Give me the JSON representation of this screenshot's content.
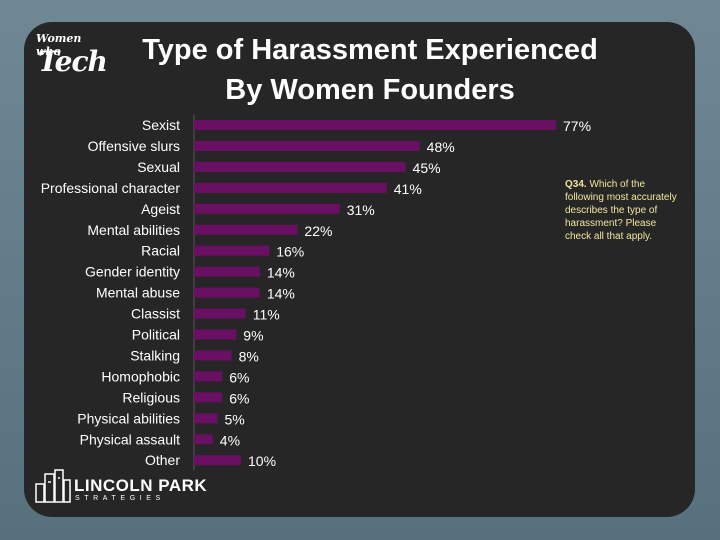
{
  "title": {
    "line1": "Type of Harassment Experienced",
    "line2": "By Women Founders"
  },
  "logo_top": {
    "line1": "Women who",
    "line2": "Tech"
  },
  "logo_bottom": {
    "name": "LINCOLN PARK",
    "tagline": "STRATEGIES"
  },
  "note": {
    "label": "Q34.",
    "text": "Which of the following most accurately describes the type of harassment? Please check all that apply."
  },
  "colors": {
    "bar": "#6a0f63",
    "background": "#262626",
    "text": "#ffffff",
    "note": "#f1e79a"
  },
  "chart_data": {
    "type": "bar",
    "orientation": "horizontal",
    "categories": [
      "Sexist",
      "Offensive slurs",
      "Sexual",
      "Professional character",
      "Ageist",
      "Mental abilities",
      "Racial",
      "Gender identity",
      "Mental abuse",
      "Classist",
      "Political",
      "Stalking",
      "Homophobic",
      "Religious",
      "Physical abilities",
      "Physical assault",
      "Other"
    ],
    "values": [
      77,
      48,
      45,
      41,
      31,
      22,
      16,
      14,
      14,
      11,
      9,
      8,
      6,
      6,
      5,
      4,
      10
    ],
    "value_labels": [
      "77%",
      "48%",
      "45%",
      "41%",
      "31%",
      "22%",
      "16%",
      "14%",
      "14%",
      "11%",
      "9%",
      "8%",
      "6%",
      "6%",
      "5%",
      "4%",
      "10%"
    ],
    "xlim": [
      0,
      100
    ],
    "grid": false,
    "legend": "none"
  }
}
